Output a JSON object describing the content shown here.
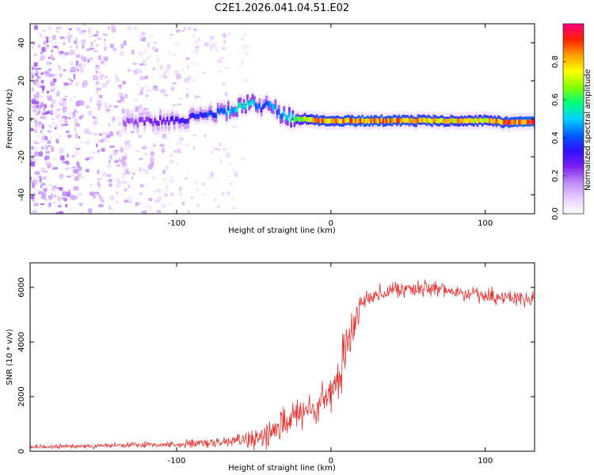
{
  "title": "C2E1.2026.041.04.51.E02",
  "colors": {
    "snr_line": "#e83030",
    "axis": "#000000",
    "background": "#ffffff"
  },
  "chart_data": [
    {
      "type": "heatmap",
      "name": "spectrogram",
      "xlabel": "Height of straight line (km)",
      "ylabel": "Frequency (Hz)",
      "xlim": [
        -195,
        132
      ],
      "ylim": [
        -50,
        50
      ],
      "xticks": [
        -100,
        0,
        100
      ],
      "yticks": [
        -40,
        -20,
        0,
        20,
        40
      ],
      "colorbar": {
        "label": "Normalized spectral amplitude",
        "range": [
          0,
          1
        ],
        "ticks": [
          "0.0",
          "0.2",
          "0.4",
          "0.6",
          "0.8"
        ],
        "colormap": [
          "#ffffff",
          "#e6ccff",
          "#c089f5",
          "#7a1cf0",
          "#2d10ff",
          "#0060ff",
          "#00d2ff",
          "#00ff7a",
          "#86ff00",
          "#ffff00",
          "#ffa000",
          "#ff2000",
          "#ff0080"
        ]
      },
      "ridge": {
        "x": [
          -130,
          -110,
          -95,
          -80,
          -68,
          -60,
          -52,
          -45,
          -40,
          -35,
          -28,
          -20,
          -10,
          0,
          20,
          40,
          60,
          80,
          100,
          115,
          132
        ],
        "freq": [
          -2,
          -1,
          0,
          2,
          4,
          6,
          8,
          5,
          9,
          3,
          1,
          0,
          -1,
          -1,
          -1,
          -1,
          -1,
          -1,
          -1,
          -2,
          -2
        ],
        "amplitude": [
          0.22,
          0.28,
          0.32,
          0.38,
          0.45,
          0.52,
          0.55,
          0.35,
          0.5,
          0.45,
          0.55,
          0.68,
          0.85,
          0.82,
          0.88,
          0.85,
          0.82,
          0.8,
          0.78,
          0.85,
          0.95
        ]
      }
    },
    {
      "type": "line",
      "name": "snr",
      "xlabel": "Height of straight line (km)",
      "ylabel": "SNR (10 * v/v)",
      "xlim": [
        -195,
        132
      ],
      "ylim": [
        0,
        6900
      ],
      "xticks": [
        -100,
        0,
        100
      ],
      "yticks": [
        0,
        2000,
        4000,
        6000
      ],
      "envelope": {
        "x": [
          -195,
          -150,
          -100,
          -70,
          -60,
          -50,
          -40,
          -35,
          -30,
          -25,
          -20,
          -15,
          -10,
          -5,
          0,
          5,
          8,
          10,
          12,
          15,
          18,
          20,
          25,
          30,
          40,
          50,
          60,
          70,
          80,
          90,
          100,
          110,
          120,
          132
        ],
        "mean": [
          150,
          200,
          250,
          300,
          400,
          500,
          700,
          900,
          1100,
          1200,
          1300,
          1400,
          1600,
          1800,
          2100,
          2600,
          3200,
          3700,
          4200,
          4700,
          5100,
          5400,
          5700,
          5800,
          5900,
          5950,
          5950,
          5900,
          5850,
          5800,
          5700,
          5650,
          5600,
          5550
        ],
        "spread": [
          60,
          80,
          100,
          160,
          250,
          350,
          500,
          550,
          600,
          600,
          550,
          550,
          550,
          600,
          700,
          800,
          900,
          900,
          800,
          600,
          450,
          350,
          300,
          280,
          280,
          260,
          260,
          260,
          250,
          250,
          250,
          240,
          240,
          240
        ]
      }
    }
  ]
}
